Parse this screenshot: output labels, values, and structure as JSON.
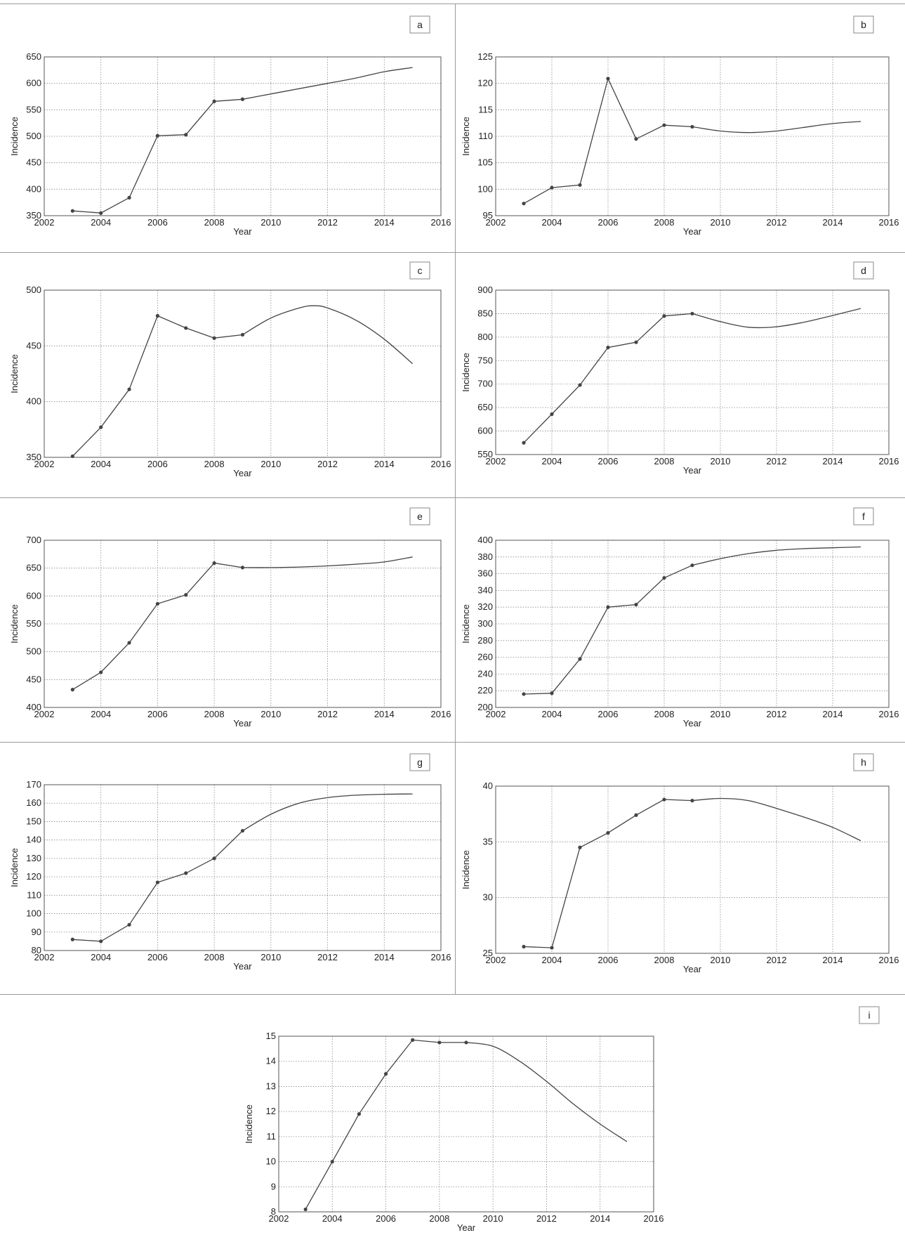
{
  "figure": {
    "panels": [
      {
        "letter": "a",
        "x_label": "Year",
        "y_label": "Incidence"
      },
      {
        "letter": "b",
        "x_label": "Year",
        "y_label": "Incidence"
      },
      {
        "letter": "c",
        "x_label": "Year",
        "y_label": "Incidence"
      },
      {
        "letter": "d",
        "x_label": "Year",
        "y_label": "Incidence"
      },
      {
        "letter": "e",
        "x_label": "Year",
        "y_label": "Incidence"
      },
      {
        "letter": "f",
        "x_label": "Year",
        "y_label": "Incidence"
      },
      {
        "letter": "g",
        "x_label": "Year",
        "y_label": "Incidence"
      },
      {
        "letter": "h",
        "x_label": "Year",
        "y_label": "Incidence"
      },
      {
        "letter": "i",
        "x_label": "Year",
        "y_label": "Incidence"
      }
    ]
  },
  "chart_data": [
    {
      "panel": "a",
      "type": "line",
      "xlabel": "Year",
      "ylabel": "Incidence",
      "xlim": [
        2002,
        2016
      ],
      "ylim": [
        350,
        650
      ],
      "xticks": [
        2002,
        2004,
        2006,
        2008,
        2010,
        2012,
        2014,
        2016
      ],
      "yticks": [
        350,
        400,
        450,
        500,
        550,
        600,
        650
      ],
      "grid": true,
      "observed": {
        "x": [
          2003,
          2004,
          2005,
          2006,
          2007,
          2008,
          2009
        ],
        "y": [
          359,
          355,
          384,
          501,
          503,
          566,
          570
        ]
      },
      "forecast": {
        "x": [
          2009,
          2010,
          2011,
          2012,
          2013,
          2014,
          2015
        ],
        "y": [
          570,
          580,
          590,
          600,
          610,
          622,
          630
        ]
      }
    },
    {
      "panel": "b",
      "type": "line",
      "xlabel": "Year",
      "ylabel": "Incidence",
      "xlim": [
        2002,
        2016
      ],
      "ylim": [
        95,
        125
      ],
      "xticks": [
        2002,
        2004,
        2006,
        2008,
        2010,
        2012,
        2014,
        2016
      ],
      "yticks": [
        95,
        100,
        105,
        110,
        115,
        120,
        125
      ],
      "grid": true,
      "observed": {
        "x": [
          2003,
          2004,
          2005,
          2006,
          2007,
          2008,
          2009
        ],
        "y": [
          97.3,
          100.3,
          100.8,
          120.9,
          109.5,
          112.1,
          111.8
        ]
      },
      "forecast": {
        "x": [
          2009,
          2010,
          2011,
          2012,
          2013,
          2014,
          2015
        ],
        "y": [
          111.8,
          111.0,
          110.7,
          111.0,
          111.7,
          112.4,
          112.8
        ]
      }
    },
    {
      "panel": "c",
      "type": "line",
      "xlabel": "Year",
      "ylabel": "Incidence",
      "xlim": [
        2002,
        2016
      ],
      "ylim": [
        350,
        500
      ],
      "xticks": [
        2002,
        2004,
        2006,
        2008,
        2010,
        2012,
        2014,
        2016
      ],
      "yticks": [
        350,
        400,
        450,
        500
      ],
      "grid": true,
      "observed": {
        "x": [
          2003,
          2004,
          2005,
          2006,
          2007,
          2008,
          2009
        ],
        "y": [
          351,
          377,
          411,
          477,
          466,
          457,
          460
        ]
      },
      "forecast": {
        "x": [
          2009,
          2010,
          2011,
          2011.5,
          2012,
          2013,
          2014,
          2015
        ],
        "y": [
          460,
          475,
          484,
          486,
          484,
          473,
          456,
          434
        ]
      }
    },
    {
      "panel": "d",
      "type": "line",
      "xlabel": "Year",
      "ylabel": "Incidence",
      "xlim": [
        2002,
        2016
      ],
      "ylim": [
        550,
        900
      ],
      "xticks": [
        2002,
        2004,
        2006,
        2008,
        2010,
        2012,
        2014,
        2016
      ],
      "yticks": [
        550,
        600,
        650,
        700,
        750,
        800,
        850,
        900
      ],
      "grid": true,
      "observed": {
        "x": [
          2003,
          2004,
          2005,
          2006,
          2007,
          2008,
          2009
        ],
        "y": [
          575,
          636,
          698,
          778,
          789,
          845,
          850
        ]
      },
      "forecast": {
        "x": [
          2009,
          2010,
          2011,
          2012,
          2013,
          2014,
          2015
        ],
        "y": [
          850,
          833,
          821,
          822,
          832,
          846,
          861
        ]
      }
    },
    {
      "panel": "e",
      "type": "line",
      "xlabel": "Year",
      "ylabel": "Incidence",
      "xlim": [
        2002,
        2016
      ],
      "ylim": [
        400,
        700
      ],
      "xticks": [
        2002,
        2004,
        2006,
        2008,
        2010,
        2012,
        2014,
        2016
      ],
      "yticks": [
        400,
        450,
        500,
        550,
        600,
        650,
        700
      ],
      "grid": true,
      "observed": {
        "x": [
          2003,
          2004,
          2005,
          2006,
          2007,
          2008,
          2009
        ],
        "y": [
          432,
          463,
          516,
          586,
          602,
          659,
          651
        ]
      },
      "forecast": {
        "x": [
          2009,
          2010,
          2011,
          2012,
          2013,
          2014,
          2015
        ],
        "y": [
          651,
          651,
          652,
          654,
          657,
          661,
          670
        ]
      }
    },
    {
      "panel": "f",
      "type": "line",
      "xlabel": "Year",
      "ylabel": "Incidence",
      "xlim": [
        2002,
        2016
      ],
      "ylim": [
        200,
        400
      ],
      "xticks": [
        2002,
        2004,
        2006,
        2008,
        2010,
        2012,
        2014,
        2016
      ],
      "yticks": [
        200,
        220,
        240,
        260,
        280,
        300,
        320,
        340,
        360,
        380,
        400
      ],
      "grid": true,
      "observed": {
        "x": [
          2003,
          2004,
          2005,
          2006,
          2007,
          2008,
          2009
        ],
        "y": [
          216,
          217,
          258,
          320,
          323,
          355,
          370
        ]
      },
      "forecast": {
        "x": [
          2009,
          2010,
          2011,
          2012,
          2013,
          2014,
          2015
        ],
        "y": [
          370,
          378,
          384,
          388,
          390,
          391,
          392
        ]
      }
    },
    {
      "panel": "g",
      "type": "line",
      "xlabel": "Year",
      "ylabel": "Incidence",
      "xlim": [
        2002,
        2016
      ],
      "ylim": [
        80,
        170
      ],
      "xticks": [
        2002,
        2004,
        2006,
        2008,
        2010,
        2012,
        2014,
        2016
      ],
      "yticks": [
        80,
        90,
        100,
        110,
        120,
        130,
        140,
        150,
        160,
        170
      ],
      "grid": true,
      "observed": {
        "x": [
          2003,
          2004,
          2005,
          2006,
          2007,
          2008,
          2009
        ],
        "y": [
          86,
          85,
          94,
          117,
          122,
          130,
          145
        ]
      },
      "forecast": {
        "x": [
          2009,
          2010,
          2011,
          2012,
          2013,
          2014,
          2015
        ],
        "y": [
          145,
          154,
          160,
          163,
          164.3,
          164.8,
          165
        ]
      }
    },
    {
      "panel": "h",
      "type": "line",
      "xlabel": "Year",
      "ylabel": "Incidence",
      "xlim": [
        2002,
        2016
      ],
      "ylim": [
        25,
        40
      ],
      "xticks": [
        2002,
        2004,
        2006,
        2008,
        2010,
        2012,
        2014,
        2016
      ],
      "yticks": [
        25,
        30,
        35,
        40
      ],
      "grid": true,
      "observed": {
        "x": [
          2003,
          2004,
          2005,
          2006,
          2007,
          2008,
          2009
        ],
        "y": [
          25.6,
          25.5,
          34.5,
          35.8,
          37.4,
          38.8,
          38.7
        ]
      },
      "forecast": {
        "x": [
          2009,
          2010,
          2011,
          2012,
          2013,
          2014,
          2015
        ],
        "y": [
          38.7,
          38.9,
          38.7,
          38.0,
          37.2,
          36.3,
          35.1
        ]
      }
    },
    {
      "panel": "i",
      "type": "line",
      "xlabel": "Year",
      "ylabel": "Incidence",
      "xlim": [
        2002,
        2016
      ],
      "ylim": [
        8,
        15
      ],
      "xticks": [
        2002,
        2004,
        2006,
        2008,
        2010,
        2012,
        2014,
        2016
      ],
      "yticks": [
        8,
        9,
        10,
        11,
        12,
        13,
        14,
        15
      ],
      "grid": true,
      "observed": {
        "x": [
          2003,
          2004,
          2005,
          2006,
          2007,
          2008,
          2009
        ],
        "y": [
          8.1,
          10.0,
          11.9,
          13.5,
          14.85,
          14.75,
          14.75
        ]
      },
      "forecast": {
        "x": [
          2009,
          2010,
          2011,
          2012,
          2013,
          2014,
          2015
        ],
        "y": [
          14.75,
          14.6,
          14.0,
          13.2,
          12.3,
          11.5,
          10.8
        ]
      }
    }
  ]
}
